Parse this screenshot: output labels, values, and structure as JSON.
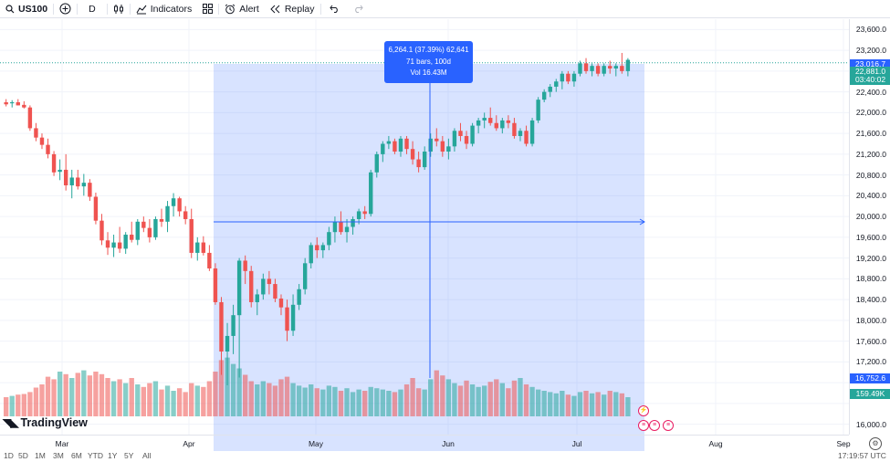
{
  "toolbar": {
    "symbol": "US100",
    "add_icon": "plus-circle-icon",
    "interval": "D",
    "chart_type_icon": "candles-icon",
    "indicators_label": "Indicators",
    "layouts_icon": "grid-icon",
    "alert_label": "Alert",
    "replay_label": "Replay",
    "undo_icon": "undo-icon",
    "redo_icon": "redo-icon"
  },
  "measure": {
    "line1": "6,264.1 (37.39%) 62,641",
    "line2": "71 bars, 100d",
    "line3": "Vol 16.43M"
  },
  "price_axis": {
    "ticks": [
      "23,600.0",
      "23,200.0",
      "22,400.0",
      "22,000.0",
      "21,600.0",
      "21,200.0",
      "20,800.0",
      "20,400.0",
      "20,000.0",
      "19,600.0",
      "19,200.0",
      "18,800.0",
      "18,400.0",
      "18,000.0",
      "17,600.0",
      "17,200.0",
      "16,000.0"
    ],
    "last_price": "23,016.7",
    "prev_label": "22,881.0",
    "countdown": "03:40:02",
    "measure_low": "16,752.6",
    "volume_label": "159.49K"
  },
  "time_axis": {
    "ticks": [
      "Mar",
      "Apr",
      "May",
      "Jun",
      "Jul",
      "Aug",
      "Sep"
    ]
  },
  "bottom_bar": {
    "ranges": [
      "1D",
      "5D",
      "1M",
      "3M",
      "6M",
      "YTD",
      "1Y",
      "5Y",
      "All"
    ],
    "time": "17:19:57 UTC"
  },
  "logo": {
    "text": "TradingView"
  },
  "colors": {
    "up": "#26a69a",
    "down": "#ef5350",
    "measure_bg": "#2962ff",
    "grid": "#f0f3fa"
  },
  "chart_data": {
    "type": "candlestick",
    "ylim": [
      15800,
      23800
    ],
    "candles": [
      {
        "o": 22200,
        "h": 22260,
        "l": 22120,
        "c": 22160
      },
      {
        "o": 22180,
        "h": 22240,
        "l": 22100,
        "c": 22200
      },
      {
        "o": 22200,
        "h": 22260,
        "l": 22140,
        "c": 22140
      },
      {
        "o": 22150,
        "h": 22220,
        "l": 22080,
        "c": 22100
      },
      {
        "o": 22100,
        "h": 22140,
        "l": 21650,
        "c": 21700
      },
      {
        "o": 21700,
        "h": 21800,
        "l": 21450,
        "c": 21520
      },
      {
        "o": 21520,
        "h": 21600,
        "l": 21300,
        "c": 21380
      },
      {
        "o": 21380,
        "h": 21500,
        "l": 21120,
        "c": 21200
      },
      {
        "o": 21200,
        "h": 21260,
        "l": 20780,
        "c": 20850
      },
      {
        "o": 20860,
        "h": 21100,
        "l": 20700,
        "c": 20900
      },
      {
        "o": 20900,
        "h": 21200,
        "l": 20500,
        "c": 20600
      },
      {
        "o": 20600,
        "h": 20900,
        "l": 20350,
        "c": 20750
      },
      {
        "o": 20750,
        "h": 20900,
        "l": 20520,
        "c": 20580
      },
      {
        "o": 20580,
        "h": 20820,
        "l": 20400,
        "c": 20650
      },
      {
        "o": 20650,
        "h": 20720,
        "l": 20300,
        "c": 20380
      },
      {
        "o": 20380,
        "h": 20460,
        "l": 19850,
        "c": 19920
      },
      {
        "o": 19920,
        "h": 20050,
        "l": 19450,
        "c": 19540
      },
      {
        "o": 19540,
        "h": 19700,
        "l": 19260,
        "c": 19400
      },
      {
        "o": 19400,
        "h": 19650,
        "l": 19220,
        "c": 19500
      },
      {
        "o": 19500,
        "h": 19800,
        "l": 19300,
        "c": 19380
      },
      {
        "o": 19380,
        "h": 19700,
        "l": 19280,
        "c": 19650
      },
      {
        "o": 19650,
        "h": 19900,
        "l": 19500,
        "c": 19550
      },
      {
        "o": 19550,
        "h": 19950,
        "l": 19450,
        "c": 19900
      },
      {
        "o": 19900,
        "h": 20000,
        "l": 19700,
        "c": 19780
      },
      {
        "o": 19780,
        "h": 19950,
        "l": 19500,
        "c": 19600
      },
      {
        "o": 19600,
        "h": 20000,
        "l": 19550,
        "c": 19950
      },
      {
        "o": 19950,
        "h": 20150,
        "l": 19800,
        "c": 19900
      },
      {
        "o": 19900,
        "h": 20300,
        "l": 19700,
        "c": 20200
      },
      {
        "o": 20200,
        "h": 20450,
        "l": 20000,
        "c": 20350
      },
      {
        "o": 20350,
        "h": 20380,
        "l": 20000,
        "c": 20100
      },
      {
        "o": 20100,
        "h": 20200,
        "l": 19850,
        "c": 19950
      },
      {
        "o": 19950,
        "h": 20150,
        "l": 19200,
        "c": 19300
      },
      {
        "o": 19300,
        "h": 19600,
        "l": 19150,
        "c": 19500
      },
      {
        "o": 19500,
        "h": 19620,
        "l": 19250,
        "c": 19300
      },
      {
        "o": 19300,
        "h": 19450,
        "l": 18950,
        "c": 19000
      },
      {
        "o": 19000,
        "h": 19100,
        "l": 18300,
        "c": 18350
      },
      {
        "o": 18350,
        "h": 18450,
        "l": 16950,
        "c": 17400
      },
      {
        "o": 17400,
        "h": 17950,
        "l": 16750,
        "c": 17700
      },
      {
        "o": 17700,
        "h": 18300,
        "l": 17350,
        "c": 18100
      },
      {
        "o": 18100,
        "h": 19200,
        "l": 16900,
        "c": 19150
      },
      {
        "o": 19150,
        "h": 19250,
        "l": 18700,
        "c": 18950
      },
      {
        "o": 18950,
        "h": 19050,
        "l": 18250,
        "c": 18350
      },
      {
        "o": 18350,
        "h": 18600,
        "l": 18100,
        "c": 18500
      },
      {
        "o": 18500,
        "h": 18900,
        "l": 18400,
        "c": 18800
      },
      {
        "o": 18800,
        "h": 18950,
        "l": 18500,
        "c": 18700
      },
      {
        "o": 18700,
        "h": 18800,
        "l": 18350,
        "c": 18420
      },
      {
        "o": 18420,
        "h": 18500,
        "l": 18100,
        "c": 18250
      },
      {
        "o": 18250,
        "h": 18400,
        "l": 17600,
        "c": 17800
      },
      {
        "o": 17800,
        "h": 18500,
        "l": 17700,
        "c": 18300
      },
      {
        "o": 18300,
        "h": 18700,
        "l": 18200,
        "c": 18600
      },
      {
        "o": 18600,
        "h": 19200,
        "l": 18500,
        "c": 19100
      },
      {
        "o": 19100,
        "h": 19500,
        "l": 19000,
        "c": 19450
      },
      {
        "o": 19450,
        "h": 19600,
        "l": 19200,
        "c": 19350
      },
      {
        "o": 19350,
        "h": 19500,
        "l": 19200,
        "c": 19450
      },
      {
        "o": 19450,
        "h": 19800,
        "l": 19350,
        "c": 19700
      },
      {
        "o": 19700,
        "h": 20000,
        "l": 19500,
        "c": 19900
      },
      {
        "o": 19900,
        "h": 20100,
        "l": 19650,
        "c": 19700
      },
      {
        "o": 19700,
        "h": 19950,
        "l": 19500,
        "c": 19800
      },
      {
        "o": 19800,
        "h": 20000,
        "l": 19650,
        "c": 19950
      },
      {
        "o": 19950,
        "h": 20150,
        "l": 19850,
        "c": 20100
      },
      {
        "o": 20100,
        "h": 20200,
        "l": 19950,
        "c": 20050
      },
      {
        "o": 20050,
        "h": 20900,
        "l": 20000,
        "c": 20850
      },
      {
        "o": 20850,
        "h": 21250,
        "l": 20750,
        "c": 21200
      },
      {
        "o": 21200,
        "h": 21450,
        "l": 21050,
        "c": 21400
      },
      {
        "o": 21400,
        "h": 21550,
        "l": 21300,
        "c": 21450
      },
      {
        "o": 21450,
        "h": 21500,
        "l": 21200,
        "c": 21250
      },
      {
        "o": 21250,
        "h": 21550,
        "l": 21150,
        "c": 21500
      },
      {
        "o": 21500,
        "h": 21550,
        "l": 21200,
        "c": 21300
      },
      {
        "o": 21300,
        "h": 21450,
        "l": 21000,
        "c": 21100
      },
      {
        "o": 21100,
        "h": 21250,
        "l": 20850,
        "c": 20950
      },
      {
        "o": 20950,
        "h": 21350,
        "l": 20900,
        "c": 21250
      },
      {
        "o": 21250,
        "h": 21600,
        "l": 21150,
        "c": 21500
      },
      {
        "o": 21500,
        "h": 21700,
        "l": 21350,
        "c": 21450
      },
      {
        "o": 21450,
        "h": 21550,
        "l": 21150,
        "c": 21250
      },
      {
        "o": 21250,
        "h": 21500,
        "l": 21100,
        "c": 21350
      },
      {
        "o": 21350,
        "h": 21700,
        "l": 21250,
        "c": 21650
      },
      {
        "o": 21650,
        "h": 21800,
        "l": 21450,
        "c": 21550
      },
      {
        "o": 21550,
        "h": 21650,
        "l": 21300,
        "c": 21400
      },
      {
        "o": 21400,
        "h": 21800,
        "l": 21350,
        "c": 21750
      },
      {
        "o": 21750,
        "h": 21900,
        "l": 21600,
        "c": 21850
      },
      {
        "o": 21850,
        "h": 22000,
        "l": 21700,
        "c": 21900
      },
      {
        "o": 21900,
        "h": 22100,
        "l": 21750,
        "c": 21800
      },
      {
        "o": 21800,
        "h": 21950,
        "l": 21650,
        "c": 21700
      },
      {
        "o": 21700,
        "h": 21900,
        "l": 21600,
        "c": 21850
      },
      {
        "o": 21850,
        "h": 21950,
        "l": 21700,
        "c": 21800
      },
      {
        "o": 21800,
        "h": 21900,
        "l": 21500,
        "c": 21550
      },
      {
        "o": 21550,
        "h": 21700,
        "l": 21450,
        "c": 21650
      },
      {
        "o": 21650,
        "h": 21750,
        "l": 21350,
        "c": 21400
      },
      {
        "o": 21400,
        "h": 21900,
        "l": 21350,
        "c": 21850
      },
      {
        "o": 21850,
        "h": 22300,
        "l": 21800,
        "c": 22250
      },
      {
        "o": 22250,
        "h": 22450,
        "l": 22200,
        "c": 22400
      },
      {
        "o": 22400,
        "h": 22550,
        "l": 22300,
        "c": 22500
      },
      {
        "o": 22500,
        "h": 22650,
        "l": 22400,
        "c": 22600
      },
      {
        "o": 22600,
        "h": 22800,
        "l": 22450,
        "c": 22750
      },
      {
        "o": 22750,
        "h": 22800,
        "l": 22550,
        "c": 22600
      },
      {
        "o": 22600,
        "h": 22800,
        "l": 22500,
        "c": 22750
      },
      {
        "o": 22750,
        "h": 23000,
        "l": 22700,
        "c": 22950
      },
      {
        "o": 22950,
        "h": 23050,
        "l": 22750,
        "c": 22800
      },
      {
        "o": 22800,
        "h": 22950,
        "l": 22700,
        "c": 22900
      },
      {
        "o": 22900,
        "h": 22950,
        "l": 22700,
        "c": 22750
      },
      {
        "o": 22750,
        "h": 22950,
        "l": 22700,
        "c": 22900
      },
      {
        "o": 22900,
        "h": 23000,
        "l": 22750,
        "c": 22850
      },
      {
        "o": 22850,
        "h": 22950,
        "l": 22700,
        "c": 22900
      },
      {
        "o": 22900,
        "h": 23150,
        "l": 22750,
        "c": 22800
      },
      {
        "o": 22800,
        "h": 23050,
        "l": 22700,
        "c": 23016.7
      }
    ],
    "volumes": [
      0.3,
      0.32,
      0.34,
      0.35,
      0.38,
      0.45,
      0.5,
      0.62,
      0.58,
      0.7,
      0.66,
      0.6,
      0.68,
      0.72,
      0.64,
      0.7,
      0.66,
      0.6,
      0.55,
      0.58,
      0.52,
      0.6,
      0.5,
      0.46,
      0.52,
      0.55,
      0.42,
      0.48,
      0.4,
      0.44,
      0.38,
      0.52,
      0.48,
      0.46,
      0.55,
      0.7,
      0.88,
      0.92,
      0.82,
      0.75,
      0.65,
      0.55,
      0.5,
      0.55,
      0.52,
      0.48,
      0.58,
      0.62,
      0.52,
      0.48,
      0.45,
      0.5,
      0.44,
      0.42,
      0.48,
      0.46,
      0.4,
      0.44,
      0.38,
      0.42,
      0.4,
      0.46,
      0.44,
      0.42,
      0.4,
      0.38,
      0.42,
      0.5,
      0.6,
      0.44,
      0.42,
      0.58,
      0.72,
      0.64,
      0.58,
      0.52,
      0.48,
      0.56,
      0.5,
      0.46,
      0.48,
      0.54,
      0.58,
      0.52,
      0.44,
      0.56,
      0.6,
      0.5,
      0.46,
      0.42,
      0.4,
      0.38,
      0.36,
      0.4,
      0.34,
      0.32,
      0.38,
      0.4,
      0.36,
      0.38,
      0.34,
      0.4,
      0.38,
      0.36,
      0.3
    ]
  }
}
